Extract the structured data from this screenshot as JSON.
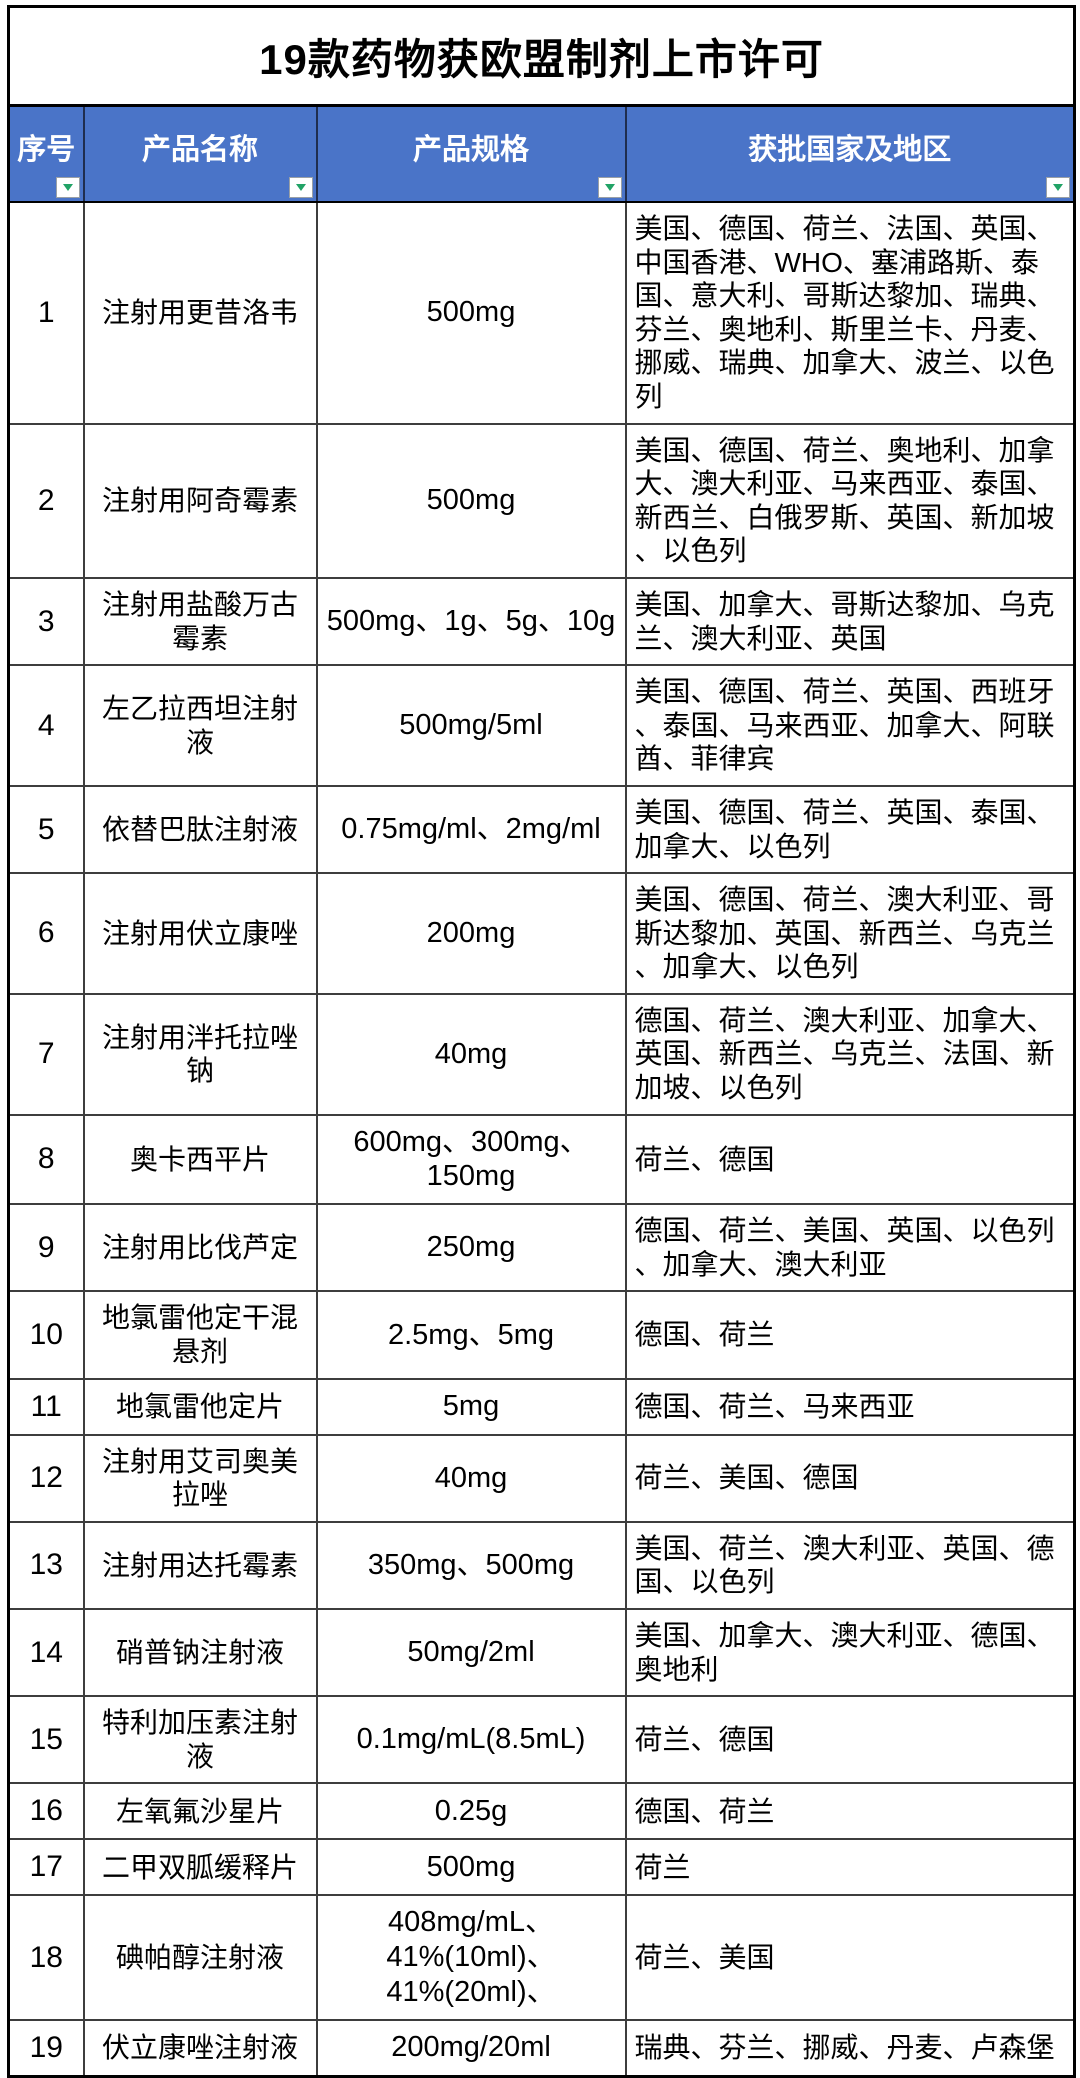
{
  "title": "19款药物获欧盟制剂上市许可",
  "colors": {
    "header_bg": "#4A74C8",
    "header_text": "#FFFFFF",
    "filter_arrow_green": "#21A366",
    "grid_line": "#3D3D3D",
    "outer_border": "#000000"
  },
  "icons": {
    "filter_arrow": "triangle-down"
  },
  "table": {
    "columns": [
      {
        "label": "序号"
      },
      {
        "label": "产品名称"
      },
      {
        "label": "产品规格"
      },
      {
        "label": "获批国家及地区"
      }
    ],
    "rows": [
      {
        "index": "1",
        "name": "注射用更昔洛韦",
        "spec": "500mg",
        "regions": "美国、德国、荷兰、法国、英国、中国香港、WHO、塞浦路斯、泰国、意大利、哥斯达黎加、瑞典、芬兰、奥地利、斯里兰卡、丹麦、挪威、瑞典、加拿大、波兰、以色列"
      },
      {
        "index": "2",
        "name": "注射用阿奇霉素",
        "spec": "500mg",
        "regions": "美国、德国、荷兰、奥地利、加拿大、澳大利亚、马来西亚、泰国、新西兰、白俄罗斯、英国、新加坡、以色列"
      },
      {
        "index": "3",
        "name": "注射用盐酸万古霉素",
        "spec": "500mg、1g、5g、10g",
        "regions": "美国、加拿大、哥斯达黎加、乌克兰、澳大利亚、英国"
      },
      {
        "index": "4",
        "name": "左乙拉西坦注射液",
        "spec": "500mg/5ml",
        "regions": "美国、德国、荷兰、英国、西班牙、泰国、马来西亚、加拿大、阿联酋、菲律宾"
      },
      {
        "index": "5",
        "name": "依替巴肽注射液",
        "spec": "0.75mg/ml、2mg/ml",
        "regions": "美国、德国、荷兰、英国、泰国、加拿大、以色列"
      },
      {
        "index": "6",
        "name": "注射用伏立康唑",
        "spec": "200mg",
        "regions": "美国、德国、荷兰、澳大利亚、哥斯达黎加、英国、新西兰、乌克兰、加拿大、以色列"
      },
      {
        "index": "7",
        "name": "注射用泮托拉唑钠",
        "spec": "40mg",
        "regions": "德国、荷兰、澳大利亚、加拿大、英国、新西兰、乌克兰、法国、新加坡、以色列"
      },
      {
        "index": "8",
        "name": "奥卡西平片",
        "spec": "600mg、300mg、150mg",
        "regions": "荷兰、德国"
      },
      {
        "index": "9",
        "name": "注射用比伐芦定",
        "spec": "250mg",
        "regions": "德国、荷兰、美国、英国、以色列、加拿大、澳大利亚"
      },
      {
        "index": "10",
        "name": "地氯雷他定干混悬剂",
        "spec": "2.5mg、5mg",
        "regions": "德国、荷兰"
      },
      {
        "index": "11",
        "name": "地氯雷他定片",
        "spec": "5mg",
        "regions": "德国、荷兰、马来西亚"
      },
      {
        "index": "12",
        "name": "注射用艾司奥美拉唑",
        "spec": "40mg",
        "regions": "荷兰、美国、德国"
      },
      {
        "index": "13",
        "name": "注射用达托霉素",
        "spec": "350mg、500mg",
        "regions": "美国、荷兰、澳大利亚、英国、德国、以色列"
      },
      {
        "index": "14",
        "name": "硝普钠注射液",
        "spec": "50mg/2ml",
        "regions": "美国、加拿大、澳大利亚、德国、奥地利"
      },
      {
        "index": "15",
        "name": "特利加压素注射液",
        "spec": "0.1mg/mL(8.5mL)",
        "regions": "荷兰、德国"
      },
      {
        "index": "16",
        "name": "左氧氟沙星片",
        "spec": "0.25g",
        "regions": "德国、荷兰"
      },
      {
        "index": "17",
        "name": "二甲双胍缓释片",
        "spec": "500mg",
        "regions": "荷兰"
      },
      {
        "index": "18",
        "name": "碘帕醇注射液",
        "spec": "408mg/mL、\n41%(10ml)、\n41%(20ml)、",
        "regions": "荷兰、美国"
      },
      {
        "index": "19",
        "name": "伏立康唑注射液",
        "spec": "200mg/20ml",
        "regions": "瑞典、芬兰、挪威、丹麦、卢森堡"
      }
    ]
  }
}
